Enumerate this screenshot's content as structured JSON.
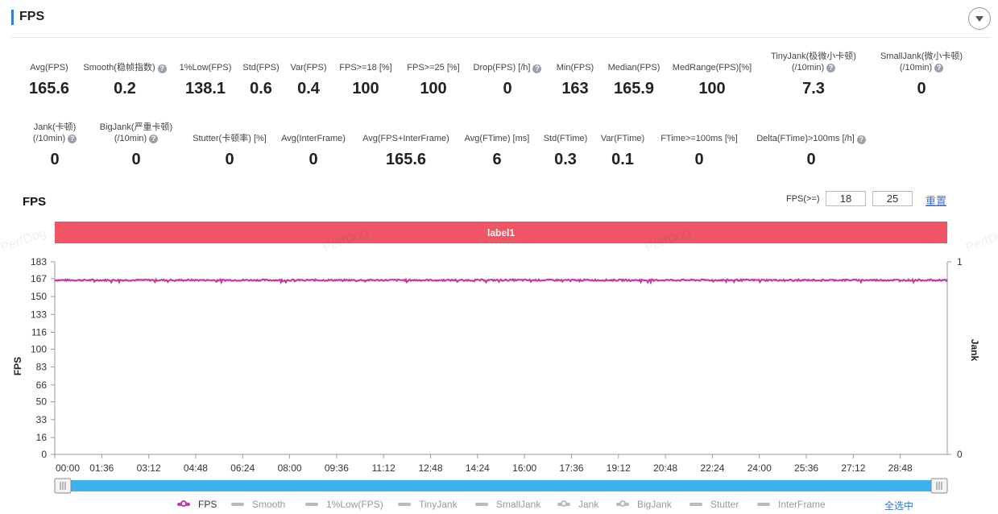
{
  "header": {
    "title": "FPS"
  },
  "metrics_row1": [
    {
      "label": "Avg(FPS)",
      "value": "165.6",
      "help": false
    },
    {
      "label": "Smooth(稳帧指数)",
      "value": "0.2",
      "help": true
    },
    {
      "label": "1%Low(FPS)",
      "value": "138.1",
      "help": false
    },
    {
      "label": "Std(FPS)",
      "value": "0.6",
      "help": false
    },
    {
      "label": "Var(FPS)",
      "value": "0.4",
      "help": false
    },
    {
      "label": "FPS>=18 [%]",
      "value": "100",
      "help": false
    },
    {
      "label": "FPS>=25 [%]",
      "value": "100",
      "help": false
    },
    {
      "label": "Drop(FPS) [/h]",
      "value": "0",
      "help": true
    },
    {
      "label": "Min(FPS)",
      "value": "163",
      "help": false
    },
    {
      "label": "Median(FPS)",
      "value": "165.9",
      "help": false
    },
    {
      "label": "MedRange(FPS)[%]",
      "value": "100",
      "help": false
    },
    {
      "label": "TinyJank(极微小卡顿)",
      "label2": "(/10min)",
      "value": "7.3",
      "help": true
    },
    {
      "label": "SmallJank(微小卡顿)",
      "label2": "(/10min)",
      "value": "0",
      "help": true
    }
  ],
  "metrics_row2": [
    {
      "label": "Jank(卡顿)",
      "label2": "(/10min)",
      "value": "0",
      "help": true
    },
    {
      "label": "BigJank(严重卡顿)",
      "label2": "(/10min)",
      "value": "0",
      "help": true
    },
    {
      "label": "Stutter(卡顿率) [%]",
      "value": "0",
      "help": false
    },
    {
      "label": "Avg(InterFrame)",
      "value": "0",
      "help": false
    },
    {
      "label": "Avg(FPS+InterFrame)",
      "value": "165.6",
      "help": false
    },
    {
      "label": "Avg(FTime) [ms]",
      "value": "6",
      "help": false
    },
    {
      "label": "Std(FTime)",
      "value": "0.3",
      "help": false
    },
    {
      "label": "Var(FTime)",
      "value": "0.1",
      "help": false
    },
    {
      "label": "FTime>=100ms [%]",
      "value": "0",
      "help": false
    },
    {
      "label": "Delta(FTime)>100ms [/h]",
      "value": "0",
      "help": true
    }
  ],
  "controls": {
    "fps_threshold_label": "FPS(>=)",
    "threshold_1": "18",
    "threshold_2": "25",
    "reset_label": "重置",
    "select_all_label": "全选中"
  },
  "help_glyph": "?",
  "watermark": "PerfDog",
  "colors": {
    "fps_line": "#c13aa8",
    "label_band": "#ef5565",
    "slider": "#3fb0ef",
    "accent": "#3a7bd5"
  },
  "chart_data": {
    "type": "line",
    "title": "FPS",
    "xlabel": "",
    "ylabel": "FPS",
    "y2label": "Jank",
    "band_label": "label1",
    "ylim": [
      0,
      183
    ],
    "y_ticks": [
      "0",
      "16",
      "33",
      "50",
      "66",
      "83",
      "100",
      "116",
      "133",
      "150",
      "167",
      "183"
    ],
    "y2lim": [
      0,
      1
    ],
    "y2_ticks": [
      "0",
      "1"
    ],
    "x_ticks": [
      "00:00",
      "01:36",
      "03:12",
      "04:48",
      "06:24",
      "08:00",
      "09:36",
      "11:12",
      "12:48",
      "14:24",
      "16:00",
      "17:36",
      "19:12",
      "20:48",
      "22:24",
      "24:00",
      "25:36",
      "27:12",
      "28:48"
    ],
    "x_minutes_range": [
      0,
      30.4
    ],
    "series": [
      {
        "name": "FPS",
        "visible": true,
        "approx_value": 165.6,
        "min": 163,
        "max": 167
      },
      {
        "name": "Smooth",
        "visible": false
      },
      {
        "name": "1%Low(FPS)",
        "visible": false
      },
      {
        "name": "TinyJank",
        "visible": false
      },
      {
        "name": "SmallJank",
        "visible": false
      },
      {
        "name": "Jank",
        "visible": false
      },
      {
        "name": "BigJank",
        "visible": false
      },
      {
        "name": "Stutter",
        "visible": false
      },
      {
        "name": "InterFrame",
        "visible": false
      }
    ]
  }
}
